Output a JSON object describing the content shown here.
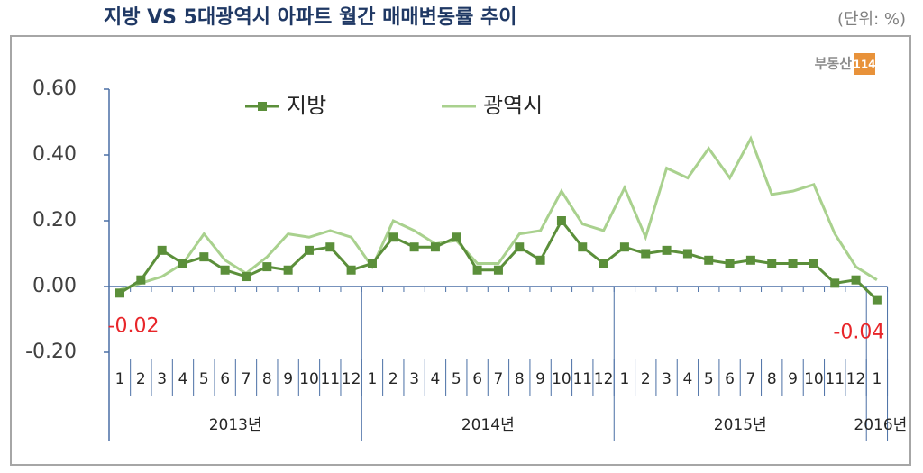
{
  "chart_data": {
    "type": "line",
    "title": "지방 VS 5대광역시 아파트 월간 매매변동률 추이",
    "unit": "(단위: %)",
    "logo": [
      "부동산",
      "114"
    ],
    "categories": [
      "1",
      "2",
      "3",
      "4",
      "5",
      "6",
      "7",
      "8",
      "9",
      "10",
      "11",
      "12",
      "1",
      "2",
      "3",
      "4",
      "5",
      "6",
      "7",
      "8",
      "9",
      "10",
      "11",
      "12",
      "1",
      "2",
      "3",
      "4",
      "5",
      "6",
      "7",
      "8",
      "9",
      "10",
      "11",
      "12",
      "1"
    ],
    "x_groups": [
      "2013년",
      "2014년",
      "2015년",
      "2016년"
    ],
    "series": [
      {
        "name": "지방",
        "color": "#5b8f3a",
        "marker": "square",
        "values": [
          -0.02,
          0.02,
          0.11,
          0.07,
          0.09,
          0.05,
          0.03,
          0.06,
          0.05,
          0.11,
          0.12,
          0.05,
          0.07,
          0.15,
          0.12,
          0.12,
          0.15,
          0.05,
          0.05,
          0.12,
          0.08,
          0.2,
          0.12,
          0.07,
          0.12,
          0.1,
          0.11,
          0.1,
          0.08,
          0.07,
          0.08,
          0.07,
          0.07,
          0.07,
          0.01,
          0.02,
          -0.04
        ],
        "value_labels": [
          "-0.02",
          null,
          null,
          null,
          null,
          null,
          null,
          null,
          null,
          null,
          null,
          null,
          null,
          null,
          null,
          null,
          null,
          null,
          null,
          null,
          null,
          null,
          null,
          null,
          null,
          null,
          null,
          null,
          null,
          null,
          null,
          null,
          null,
          null,
          null,
          null,
          "-0.04"
        ]
      },
      {
        "name": "광역시",
        "color": "#a9d18e",
        "marker": "none",
        "values": [
          -0.01,
          0.01,
          0.03,
          0.07,
          0.16,
          0.08,
          0.04,
          0.09,
          0.16,
          0.15,
          0.17,
          0.15,
          0.06,
          0.2,
          0.17,
          0.13,
          0.14,
          0.07,
          0.07,
          0.16,
          0.17,
          0.29,
          0.19,
          0.17,
          0.3,
          0.15,
          0.36,
          0.33,
          0.42,
          0.33,
          0.45,
          0.28,
          0.29,
          0.31,
          0.16,
          0.06,
          0.02
        ]
      }
    ],
    "ylim": [
      -0.2,
      0.6
    ],
    "yticks": [
      {
        "value": -0.2,
        "label": "-0.20"
      },
      {
        "value": 0,
        "label": "0.00"
      },
      {
        "value": 0.2,
        "label": "0.20"
      },
      {
        "value": 0.4,
        "label": "0.40"
      },
      {
        "value": 0.6,
        "label": "0.60"
      }
    ],
    "label_color": "#e8262a",
    "grid": false
  }
}
